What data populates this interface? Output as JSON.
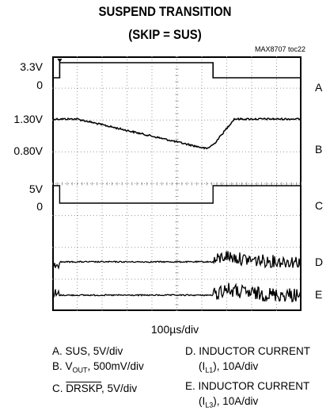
{
  "chart_data": {
    "type": "line",
    "title": "SUSPEND TRANSITION",
    "subtitle": "(SKIP = SUS)",
    "figure_ref": "MAX8707 toc22",
    "xlabel": "100µs/div",
    "x_divisions": 10,
    "y_divisions": 8,
    "grid": true,
    "levels": {
      "a_high": "3.3V",
      "a_low": "0",
      "b_high": "1.30V",
      "b_low": "0.80V",
      "c_high": "5V",
      "c_low": "0"
    },
    "trace_labels": [
      "A",
      "B",
      "C",
      "D",
      "E"
    ],
    "series": [
      {
        "name": "A",
        "x": [
          0,
          0.3,
          0.3,
          6.45,
          6.45,
          10
        ],
        "y": [
          0,
          0,
          3.3,
          3.3,
          0,
          0
        ]
      },
      {
        "name": "B",
        "x": [
          0,
          1.0,
          6.2,
          6.5,
          7.3,
          10
        ],
        "y": [
          1.3,
          1.3,
          0.82,
          0.9,
          1.3,
          1.3
        ]
      },
      {
        "name": "C",
        "x": [
          0,
          0.3,
          0.3,
          6.45,
          6.45,
          10
        ],
        "y": [
          5,
          5,
          0,
          0,
          5,
          5
        ]
      },
      {
        "name": "D",
        "x": [
          0,
          0.3,
          0.3,
          6.45,
          6.45,
          10
        ],
        "y": [
          "switching",
          "switching",
          "idle",
          "idle",
          "switching",
          "switching"
        ]
      },
      {
        "name": "E",
        "x": [
          0,
          0.3,
          0.3,
          6.45,
          6.45,
          10
        ],
        "y": [
          "switching",
          "switching",
          "idle",
          "idle",
          "switching",
          "switching"
        ]
      }
    ],
    "legend": {
      "a": "A. SUS, 5V/div",
      "b_pre": "B. V",
      "b_sub": "OUT",
      "b_post": ", 500mV/div",
      "c_pre": "C. ",
      "c_over": "DRSKP",
      "c_post": ", 5V/div",
      "d1": "D. INDUCTOR CURRENT",
      "d2_pre": "(I",
      "d2_sub": "L1",
      "d2_post": "), 10A/div",
      "e1": "E. INDUCTOR CURRENT",
      "e2_pre": "(I",
      "e2_sub": "L3",
      "e2_post": "), 10A/div"
    }
  }
}
